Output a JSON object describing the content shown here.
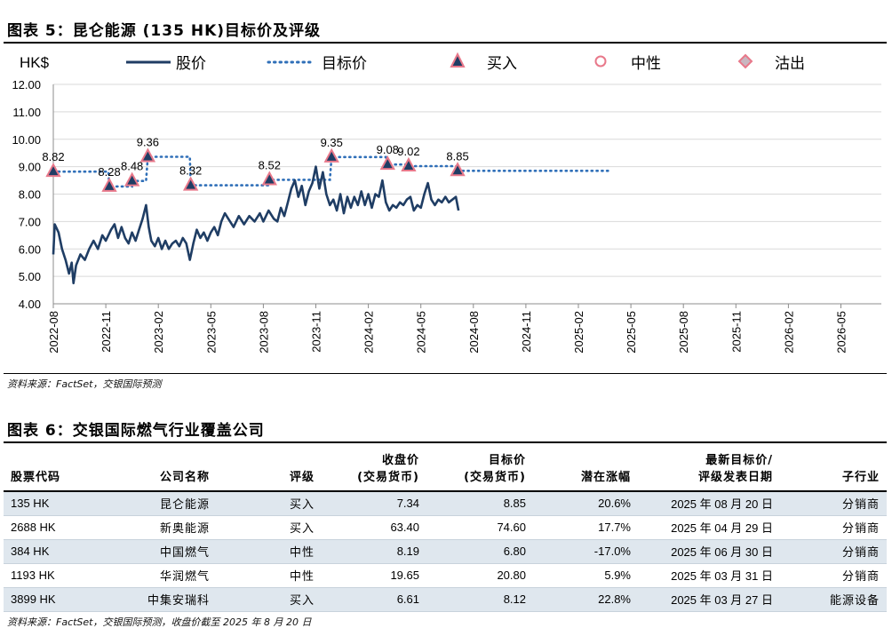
{
  "figure5": {
    "title": "图表 5：昆仑能源 (135 HK)目标价及评级",
    "source": "资料来源：FactSet，交银国际预测"
  },
  "chart_data": {
    "type": "line",
    "title": "昆仑能源 (135 HK)目标价及评级",
    "ylabel": "HK$",
    "ylim": [
      4.0,
      12.0
    ],
    "yticks": [
      "12.00",
      "11.00",
      "10.00",
      "9.00",
      "8.00",
      "7.00",
      "6.00",
      "5.00",
      "4.00"
    ],
    "xticks": [
      "2022-08",
      "2022-11",
      "2023-02",
      "2023-05",
      "2023-08",
      "2023-11",
      "2024-02",
      "2024-05",
      "2024-08",
      "2024-11",
      "2025-02",
      "2025-05",
      "2025-08",
      "2025-11",
      "2026-02",
      "2026-05"
    ],
    "legend": [
      {
        "name": "股价",
        "kind": "line"
      },
      {
        "name": "目标价",
        "kind": "dotted"
      },
      {
        "name": "买入",
        "kind": "buy"
      },
      {
        "name": "中性",
        "kind": "neutral"
      },
      {
        "name": "沽出",
        "kind": "sell"
      }
    ],
    "series": [
      {
        "name": "股价",
        "points": [
          [
            0.0,
            5.8
          ],
          [
            0.08,
            6.9
          ],
          [
            0.3,
            6.6
          ],
          [
            0.5,
            6.0
          ],
          [
            0.7,
            5.6
          ],
          [
            0.9,
            5.1
          ],
          [
            1.05,
            5.5
          ],
          [
            1.15,
            4.75
          ],
          [
            1.3,
            5.4
          ],
          [
            1.55,
            5.8
          ],
          [
            1.8,
            5.6
          ],
          [
            2.05,
            6.0
          ],
          [
            2.3,
            6.3
          ],
          [
            2.55,
            6.0
          ],
          [
            2.8,
            6.5
          ],
          [
            3.0,
            6.3
          ],
          [
            3.3,
            6.7
          ],
          [
            3.5,
            6.9
          ],
          [
            3.7,
            6.4
          ],
          [
            3.9,
            6.8
          ],
          [
            4.1,
            6.4
          ],
          [
            4.3,
            6.2
          ],
          [
            4.5,
            6.6
          ],
          [
            4.7,
            6.3
          ],
          [
            4.9,
            6.7
          ],
          [
            5.1,
            7.1
          ],
          [
            5.3,
            7.6
          ],
          [
            5.45,
            6.8
          ],
          [
            5.6,
            6.3
          ],
          [
            5.8,
            6.1
          ],
          [
            6.0,
            6.4
          ],
          [
            6.2,
            6.0
          ],
          [
            6.4,
            6.3
          ],
          [
            6.6,
            6.0
          ],
          [
            6.8,
            6.2
          ],
          [
            7.0,
            6.3
          ],
          [
            7.2,
            6.1
          ],
          [
            7.4,
            6.4
          ],
          [
            7.6,
            6.2
          ],
          [
            7.8,
            5.6
          ],
          [
            8.0,
            6.2
          ],
          [
            8.2,
            6.7
          ],
          [
            8.4,
            6.4
          ],
          [
            8.6,
            6.6
          ],
          [
            8.8,
            6.3
          ],
          [
            9.0,
            6.6
          ],
          [
            9.2,
            6.8
          ],
          [
            9.4,
            6.5
          ],
          [
            9.6,
            7.0
          ],
          [
            9.8,
            7.3
          ],
          [
            10.0,
            7.1
          ],
          [
            10.3,
            6.8
          ],
          [
            10.6,
            7.2
          ],
          [
            10.9,
            6.9
          ],
          [
            11.2,
            7.2
          ],
          [
            11.5,
            7.0
          ],
          [
            11.8,
            7.3
          ],
          [
            12.0,
            7.0
          ],
          [
            12.3,
            7.4
          ],
          [
            12.6,
            7.1
          ],
          [
            12.8,
            7.0
          ],
          [
            13.0,
            7.5
          ],
          [
            13.2,
            7.2
          ],
          [
            13.4,
            7.7
          ],
          [
            13.6,
            8.2
          ],
          [
            13.8,
            8.5
          ],
          [
            14.0,
            7.9
          ],
          [
            14.2,
            8.3
          ],
          [
            14.4,
            7.6
          ],
          [
            14.6,
            8.1
          ],
          [
            14.8,
            8.4
          ],
          [
            15.0,
            9.0
          ],
          [
            15.2,
            8.2
          ],
          [
            15.4,
            8.8
          ],
          [
            15.6,
            8.0
          ],
          [
            15.8,
            7.6
          ],
          [
            16.0,
            7.8
          ],
          [
            16.2,
            7.4
          ],
          [
            16.4,
            8.0
          ],
          [
            16.6,
            7.3
          ],
          [
            16.8,
            7.9
          ],
          [
            17.0,
            7.5
          ],
          [
            17.2,
            7.9
          ],
          [
            17.4,
            7.6
          ],
          [
            17.6,
            8.1
          ],
          [
            17.8,
            7.6
          ],
          [
            18.0,
            8.0
          ],
          [
            18.2,
            7.5
          ],
          [
            18.4,
            8.0
          ],
          [
            18.6,
            7.9
          ],
          [
            18.8,
            8.5
          ],
          [
            19.0,
            7.7
          ],
          [
            19.2,
            7.4
          ],
          [
            19.4,
            7.6
          ],
          [
            19.6,
            7.5
          ],
          [
            19.8,
            7.7
          ],
          [
            20.0,
            7.6
          ],
          [
            20.2,
            7.8
          ],
          [
            20.4,
            7.9
          ],
          [
            20.6,
            7.4
          ],
          [
            20.8,
            7.6
          ],
          [
            21.0,
            7.5
          ],
          [
            21.2,
            8.0
          ],
          [
            21.4,
            8.4
          ],
          [
            21.6,
            7.8
          ],
          [
            21.8,
            7.6
          ],
          [
            22.0,
            7.8
          ],
          [
            22.2,
            7.7
          ],
          [
            22.4,
            7.9
          ],
          [
            22.6,
            7.7
          ],
          [
            22.8,
            7.8
          ],
          [
            23.0,
            7.9
          ],
          [
            23.15,
            7.4
          ]
        ]
      },
      {
        "name": "目标价",
        "points": [
          [
            0.0,
            8.82
          ],
          [
            3.15,
            8.82
          ],
          [
            3.2,
            8.28
          ],
          [
            4.5,
            8.28
          ],
          [
            4.5,
            8.48
          ],
          [
            5.3,
            8.48
          ],
          [
            5.4,
            9.36
          ],
          [
            7.8,
            9.36
          ],
          [
            7.85,
            8.32
          ],
          [
            12.3,
            8.32
          ],
          [
            12.35,
            8.52
          ],
          [
            15.8,
            8.52
          ],
          [
            15.9,
            9.35
          ],
          [
            19.0,
            9.35
          ],
          [
            19.1,
            9.08
          ],
          [
            20.2,
            9.08
          ],
          [
            20.3,
            9.02
          ],
          [
            23.05,
            9.02
          ],
          [
            23.1,
            8.85
          ],
          [
            31.7,
            8.85
          ]
        ]
      }
    ],
    "ratings": [
      {
        "m": 0.0,
        "value": 8.82,
        "label": "8.82",
        "rating": "买入"
      },
      {
        "m": 3.2,
        "value": 8.28,
        "label": "8.28",
        "rating": "买入"
      },
      {
        "m": 4.5,
        "value": 8.48,
        "label": "8.48",
        "rating": "买入"
      },
      {
        "m": 5.4,
        "value": 9.36,
        "label": "9.36",
        "rating": "买入"
      },
      {
        "m": 7.85,
        "value": 8.32,
        "label": "8.32",
        "rating": "买入"
      },
      {
        "m": 12.35,
        "value": 8.52,
        "label": "8.52",
        "rating": "买入"
      },
      {
        "m": 15.9,
        "value": 9.35,
        "label": "9.35",
        "rating": "买入"
      },
      {
        "m": 19.1,
        "value": 9.08,
        "label": "9.08",
        "rating": "买入"
      },
      {
        "m": 20.3,
        "value": 9.02,
        "label": "9.02",
        "rating": "买入"
      },
      {
        "m": 23.1,
        "value": 8.85,
        "label": "8.85",
        "rating": "买入"
      }
    ]
  },
  "colors": {
    "price_line": "#1f3d64",
    "target_line": "#2f6fb8",
    "buy_fill": "#1f3d64",
    "marker_edge": "#e8788a",
    "grid": "#d9d9d9",
    "axis": "#8c8c8c",
    "row_alt": "#dfe7ee"
  },
  "figure6": {
    "title": "图表 6：交银国际燃气行业覆盖公司",
    "source": "资料来源：FactSet，交银国际预测，收盘价截至 2025 年 8 月 20 日",
    "headers": {
      "code": "股票代码",
      "name": "公司名称",
      "rating": "评级",
      "close_1": "收盘价",
      "close_2": "(交易货币)",
      "target_1": "目标价",
      "target_2": "(交易货币)",
      "upside": "潜在涨幅",
      "date_1": "最新目标价/",
      "date_2": "评级发表日期",
      "sector": "子行业"
    },
    "rows": [
      {
        "code": "135 HK",
        "name": "昆仑能源",
        "rating": "买入",
        "close": "7.34",
        "target": "8.85",
        "upside": "20.6%",
        "date": "2025 年 08 月 20 日",
        "sector": "分销商"
      },
      {
        "code": "2688 HK",
        "name": "新奥能源",
        "rating": "买入",
        "close": "63.40",
        "target": "74.60",
        "upside": "17.7%",
        "date": "2025 年 04 月 29 日",
        "sector": "分销商"
      },
      {
        "code": "384 HK",
        "name": "中国燃气",
        "rating": "中性",
        "close": "8.19",
        "target": "6.80",
        "upside": "-17.0%",
        "date": "2025 年 06 月 30 日",
        "sector": "分销商"
      },
      {
        "code": "1193 HK",
        "name": "华润燃气",
        "rating": "中性",
        "close": "19.65",
        "target": "20.80",
        "upside": "5.9%",
        "date": "2025 年 03 月 31 日",
        "sector": "分销商"
      },
      {
        "code": "3899 HK",
        "name": "中集安瑞科",
        "rating": "买入",
        "close": "6.61",
        "target": "8.12",
        "upside": "22.8%",
        "date": "2025 年 03 月 27 日",
        "sector": "能源设备"
      }
    ]
  }
}
